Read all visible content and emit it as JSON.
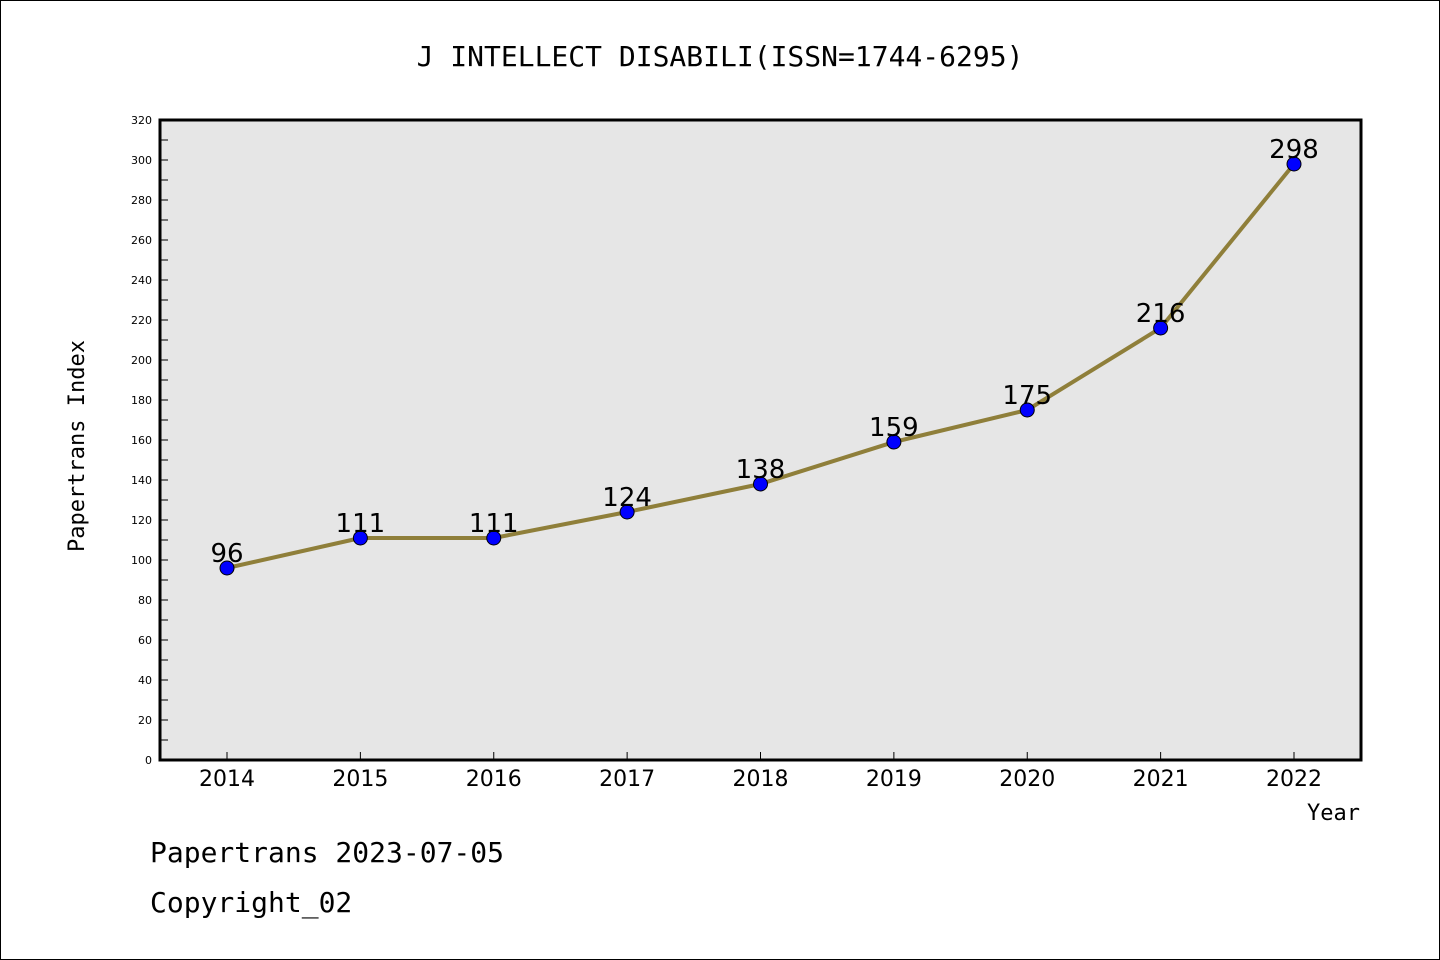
{
  "chart_data": {
    "type": "line",
    "title": "J INTELLECT DISABILI(ISSN=1744-6295)",
    "xlabel": "Year",
    "ylabel": "Papertrans Index",
    "categories": [
      "2014",
      "2015",
      "2016",
      "2017",
      "2018",
      "2019",
      "2020",
      "2021",
      "2022"
    ],
    "series": [
      {
        "values": [
          96,
          111,
          111,
          124,
          138,
          159,
          175,
          216,
          298
        ]
      }
    ],
    "data_labels": [
      "96",
      "111",
      "111",
      "124",
      "138",
      "159",
      "175",
      "216",
      "298"
    ],
    "ylim": [
      0,
      320
    ],
    "yticks": [
      0,
      20,
      40,
      60,
      80,
      100,
      120,
      140,
      160,
      180,
      200,
      220,
      240,
      260,
      280,
      300,
      320
    ],
    "grid": false,
    "legend": "none",
    "colors": {
      "line": "#8f7f3a",
      "marker": "#0000ff",
      "plot_background": "#e6e6e6"
    }
  },
  "footer": {
    "line1": "Papertrans 2023-07-05",
    "line2": "Copyright_02"
  }
}
